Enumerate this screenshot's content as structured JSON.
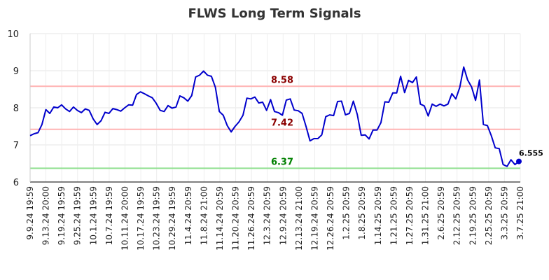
{
  "chart_data": {
    "type": "line",
    "title": "FLWS Long Term Signals",
    "xlabel": "",
    "ylabel": "",
    "ylim": [
      6,
      10
    ],
    "yticks": [
      "6",
      "7",
      "8",
      "9",
      "10"
    ],
    "grid": true,
    "legend": "none",
    "x_tick_labels": [
      "9.9.24 19:59",
      "9.13.24 20:00",
      "9.19.24 19:59",
      "9.25.24 19:59",
      "10.1.24 19:59",
      "10.7.24 19:59",
      "10.11.24 20:00",
      "10.17.24 19:59",
      "10.23.24 19:59",
      "10.29.24 19:59",
      "11.4.24 20:59",
      "11.8.24 21:00",
      "11.14.24 20:59",
      "11.20.24 20:59",
      "11.26.24 20:59",
      "12.3.24 20:59",
      "12.9.24 20:59",
      "12.13.24 21:00",
      "12.19.24 20:59",
      "12.26.24 20:59",
      "1.2.25 20:59",
      "1.8.25 20:59",
      "1.14.25 20:59",
      "1.21.25 20:59",
      "1.27.25 20:59",
      "1.31.25 21:00",
      "2.6.25 20:59",
      "2.12.25 20:59",
      "2.19.25 20:59",
      "2.25.25 20:59",
      "3.3.25 20:59",
      "3.7.25 21:00"
    ],
    "series": [
      {
        "color": "#0000cc",
        "values": [
          7.25,
          7.3,
          7.33,
          7.55,
          7.95,
          7.85,
          8.02,
          8.0,
          8.08,
          7.97,
          7.9,
          8.02,
          7.93,
          7.87,
          7.97,
          7.93,
          7.7,
          7.55,
          7.65,
          7.88,
          7.85,
          7.98,
          7.95,
          7.91,
          8.0,
          8.08,
          8.07,
          8.36,
          8.43,
          8.38,
          8.32,
          8.27,
          8.12,
          7.93,
          7.9,
          8.06,
          7.99,
          8.02,
          8.32,
          8.27,
          8.18,
          8.33,
          8.83,
          8.88,
          8.99,
          8.88,
          8.85,
          8.55,
          7.9,
          7.8,
          7.52,
          7.35,
          7.5,
          7.62,
          7.8,
          8.26,
          8.24,
          8.29,
          8.13,
          8.15,
          7.93,
          8.22,
          7.9,
          7.87,
          7.8,
          8.21,
          8.24,
          7.94,
          7.92,
          7.85,
          7.5,
          7.11,
          7.17,
          7.17,
          7.27,
          7.76,
          7.81,
          7.79,
          8.17,
          8.18,
          7.81,
          7.85,
          8.18,
          7.82,
          7.26,
          7.27,
          7.16,
          7.4,
          7.4,
          7.6,
          8.16,
          8.15,
          8.4,
          8.4,
          8.85,
          8.41,
          8.74,
          8.68,
          8.83,
          8.1,
          8.05,
          7.78,
          8.1,
          8.04,
          8.1,
          8.05,
          8.1,
          8.38,
          8.24,
          8.55,
          9.1,
          8.75,
          8.56,
          8.2,
          8.75,
          7.55,
          7.52,
          7.25,
          6.92,
          6.9,
          6.47,
          6.42,
          6.6,
          6.47,
          6.555
        ]
      }
    ],
    "last_value": 6.555,
    "last_label": "6.555",
    "hlines": [
      {
        "value": 8.58,
        "label": "8.58",
        "color": "#ffb3b3",
        "label_color": "#8b0000"
      },
      {
        "value": 7.42,
        "label": "7.42",
        "color": "#ffb3b3",
        "label_color": "#8b0000"
      },
      {
        "value": 6.37,
        "label": "6.37",
        "color": "#90e090",
        "label_color": "#008000"
      }
    ]
  }
}
